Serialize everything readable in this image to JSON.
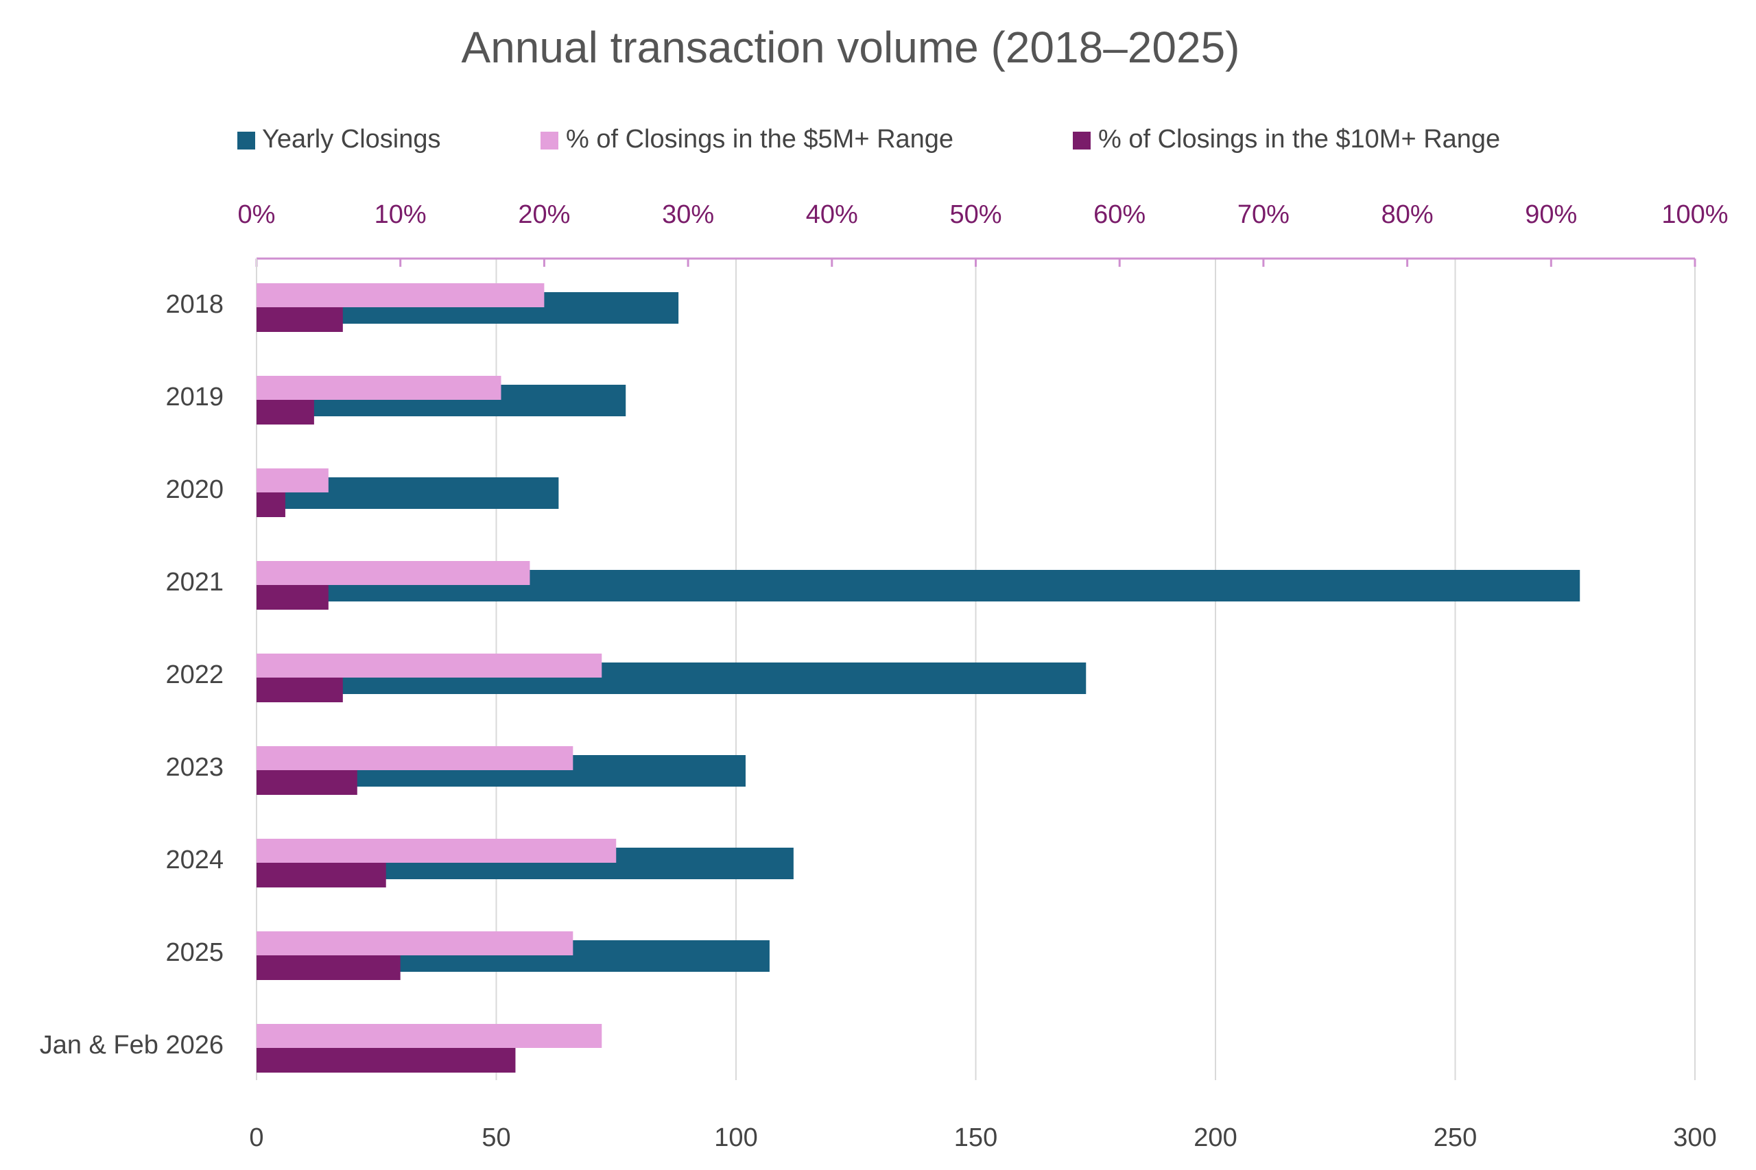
{
  "chart_data": {
    "type": "bar",
    "orientation": "horizontal",
    "title": "Annual transaction volume (2018–2025)",
    "categories": [
      "2018",
      "2019",
      "2020",
      "2021",
      "2022",
      "2023",
      "2024",
      "2025",
      "Jan & Feb 2026"
    ],
    "series": [
      {
        "name": "Yearly Closings",
        "color": "#175f80",
        "axis": "y",
        "values": [
          88,
          77,
          63,
          276,
          173,
          102,
          112,
          107,
          null
        ]
      },
      {
        "name": "% of Closings in the $5M+ Range",
        "color": "#e4a0dc",
        "axis": "y2",
        "values": [
          20,
          17,
          5,
          19,
          24,
          22,
          25,
          22,
          24
        ]
      },
      {
        "name": "% of Closings in the $10M+ Range",
        "color": "#7a1c6a",
        "axis": "y2",
        "values": [
          6,
          4,
          2,
          5,
          6,
          7,
          9,
          10,
          18
        ]
      }
    ],
    "ylim": [
      0,
      300
    ],
    "yticks": [
      0,
      50,
      100,
      150,
      200,
      250,
      300
    ],
    "y2lim": [
      0,
      100
    ],
    "y2ticks": [
      {
        "value": 0,
        "label": "0%"
      },
      {
        "value": 10,
        "label": "10%"
      },
      {
        "value": 20,
        "label": "20%"
      },
      {
        "value": 30,
        "label": "30%"
      },
      {
        "value": 40,
        "label": "40%"
      },
      {
        "value": 50,
        "label": "50%"
      },
      {
        "value": 60,
        "label": "60%"
      },
      {
        "value": 70,
        "label": "70%"
      },
      {
        "value": 80,
        "label": "80%"
      },
      {
        "value": 90,
        "label": "90%"
      },
      {
        "value": 100,
        "label": "100%"
      }
    ],
    "grid": true,
    "legend": "top"
  }
}
